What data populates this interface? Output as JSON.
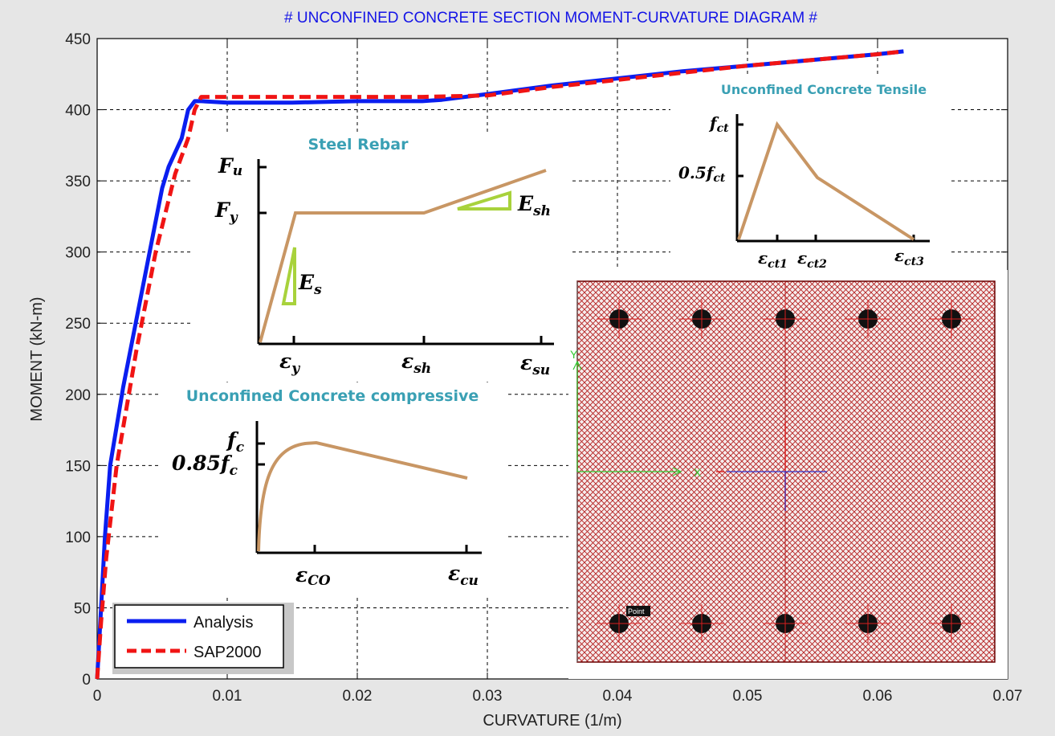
{
  "colors": {
    "analysis": "#0a1ef0",
    "sap2000": "#f01414",
    "title": "#1414e6",
    "inset_title": "#3aa0b4",
    "material_curve": "#c89664",
    "slope_marker": "#a8d23c",
    "section_hatch": "#b41e1e"
  },
  "chart_data": {
    "type": "line",
    "title": "# UNCONFINED CONCRETE SECTION MOMENT-CURVATURE DIAGRAM #",
    "xlabel": "CURVATURE (1/m)",
    "ylabel": "MOMENT (kN-m)",
    "xlim": [
      0,
      0.07
    ],
    "ylim": [
      0,
      450
    ],
    "xticks": [
      0,
      0.01,
      0.02,
      0.03,
      0.04,
      0.05,
      0.06,
      0.07
    ],
    "xtick_labels": [
      "0",
      "0.01",
      "0.02",
      "0.03",
      "0.04",
      "0.05",
      "0.06",
      "0.07"
    ],
    "yticks": [
      0,
      50,
      100,
      150,
      200,
      250,
      300,
      350,
      400,
      450
    ],
    "ytick_labels": [
      "0",
      "50",
      "100",
      "150",
      "200",
      "250",
      "300",
      "350",
      "400",
      "450"
    ],
    "grid": true,
    "legend_position": "bottom-left",
    "series": [
      {
        "name": "Analysis",
        "style": "solid",
        "x": [
          0,
          0.0003,
          0.0006,
          0.001,
          0.002,
          0.0035,
          0.005,
          0.0055,
          0.0065,
          0.007,
          0.0075,
          0.008,
          0.01,
          0.015,
          0.02,
          0.025,
          0.0265,
          0.03,
          0.035,
          0.04,
          0.045,
          0.05,
          0.055,
          0.06,
          0.062
        ],
        "y": [
          0,
          50,
          100,
          150,
          205,
          275,
          345,
          360,
          380,
          400,
          406,
          406,
          405,
          405,
          406,
          406,
          407,
          411,
          417,
          422,
          427,
          431,
          435,
          439,
          441
        ]
      },
      {
        "name": "SAP2000",
        "style": "dashed",
        "x": [
          0,
          0.0003,
          0.0007,
          0.0015,
          0.003,
          0.0045,
          0.006,
          0.007,
          0.0075,
          0.008,
          0.01,
          0.015,
          0.02,
          0.025,
          0.03,
          0.035,
          0.04,
          0.045,
          0.05,
          0.055,
          0.06,
          0.062
        ],
        "y": [
          0,
          40,
          85,
          150,
          230,
          300,
          355,
          380,
          400,
          409,
          409,
          409,
          409,
          409,
          410,
          416,
          421,
          426,
          431,
          435,
          439,
          441
        ]
      }
    ],
    "legend": [
      "Analysis",
      "SAP2000"
    ]
  },
  "insets": {
    "steel": {
      "title": "Steel Rebar",
      "y_labels": [
        "F",
        "F"
      ],
      "y_subs": [
        "u",
        "y"
      ],
      "x_labels": [
        "ε",
        "ε",
        "ε"
      ],
      "x_subs": [
        "y",
        "sh",
        "su"
      ],
      "slope_labels": [
        "E",
        "E"
      ],
      "slope_subs": [
        "s",
        "sh"
      ]
    },
    "compressive": {
      "title": "Unconfined Concrete compressive",
      "y_label_1": "f",
      "y_sub_1": "c",
      "y_label_2": "0.85f",
      "y_sub_2": "c",
      "x_labels": [
        "ε",
        "ε"
      ],
      "x_subs": [
        "CO",
        "cu"
      ]
    },
    "tensile": {
      "title": "Unconfined Concrete Tensile",
      "y_label_1": "f",
      "y_sub_1": "ct",
      "y_label_2": "0.5f",
      "y_sub_2": "ct",
      "x_labels": [
        "ε",
        "ε",
        "ε"
      ],
      "x_subs": [
        "ct1",
        "ct2",
        "ct3"
      ]
    },
    "section": {
      "axis_x": "X",
      "axis_y": "Y",
      "point_label": "Point"
    }
  }
}
